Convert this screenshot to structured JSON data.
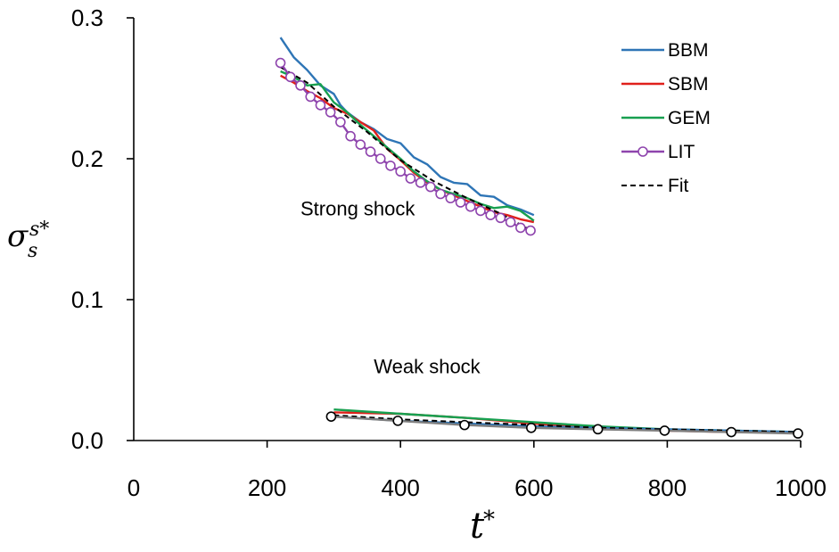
{
  "chart_data": {
    "type": "line",
    "title": "",
    "xlim": [
      0,
      1000
    ],
    "ylim": [
      0,
      0.3
    ],
    "x_ticks": [
      "0",
      "200",
      "400",
      "600",
      "800",
      "1000"
    ],
    "x_tick_values": [
      0,
      200,
      400,
      600,
      800,
      1000
    ],
    "y_ticks": [
      "0.0",
      "0.1",
      "0.2",
      "0.3"
    ],
    "y_tick_values": [
      0.0,
      0.1,
      0.2,
      0.3
    ],
    "grid": false,
    "legend_position": "top-right",
    "axis_labels": {
      "x": {
        "main": "t",
        "sup": "*"
      },
      "y": {
        "main": "σ",
        "sub": "s",
        "sup": "s*"
      }
    },
    "annotations": [
      {
        "text": "Strong shock",
        "x": 250,
        "y": 0.165
      },
      {
        "text": "Weak shock",
        "x": 360,
        "y": 0.053
      }
    ],
    "series": [
      {
        "name": "BBM",
        "color": "#2e75b6",
        "style": "solid",
        "marker": "none",
        "group": "strong",
        "points": [
          [
            220,
            0.286
          ],
          [
            240,
            0.272
          ],
          [
            260,
            0.263
          ],
          [
            280,
            0.252
          ],
          [
            300,
            0.246
          ],
          [
            310,
            0.238
          ],
          [
            320,
            0.233
          ],
          [
            340,
            0.226
          ],
          [
            360,
            0.221
          ],
          [
            380,
            0.214
          ],
          [
            400,
            0.211
          ],
          [
            420,
            0.201
          ],
          [
            440,
            0.196
          ],
          [
            460,
            0.187
          ],
          [
            480,
            0.183
          ],
          [
            500,
            0.182
          ],
          [
            520,
            0.174
          ],
          [
            540,
            0.173
          ],
          [
            560,
            0.167
          ],
          [
            580,
            0.164
          ],
          [
            600,
            0.16
          ]
        ]
      },
      {
        "name": "SBM",
        "color": "#e0201b",
        "style": "solid",
        "marker": "none",
        "group": "strong",
        "points": [
          [
            220,
            0.259
          ],
          [
            240,
            0.254
          ],
          [
            260,
            0.248
          ],
          [
            280,
            0.243
          ],
          [
            300,
            0.236
          ],
          [
            320,
            0.232
          ],
          [
            340,
            0.226
          ],
          [
            360,
            0.22
          ],
          [
            380,
            0.207
          ],
          [
            400,
            0.199
          ],
          [
            420,
            0.19
          ],
          [
            440,
            0.183
          ],
          [
            460,
            0.178
          ],
          [
            480,
            0.174
          ],
          [
            500,
            0.17
          ],
          [
            520,
            0.166
          ],
          [
            540,
            0.162
          ],
          [
            560,
            0.16
          ],
          [
            580,
            0.157
          ],
          [
            600,
            0.155
          ]
        ]
      },
      {
        "name": "GEM",
        "color": "#18a050",
        "style": "solid",
        "marker": "none",
        "group": "strong",
        "points": [
          [
            220,
            0.262
          ],
          [
            240,
            0.258
          ],
          [
            260,
            0.252
          ],
          [
            280,
            0.253
          ],
          [
            300,
            0.24
          ],
          [
            320,
            0.233
          ],
          [
            340,
            0.224
          ],
          [
            360,
            0.216
          ],
          [
            380,
            0.208
          ],
          [
            400,
            0.2
          ],
          [
            420,
            0.191
          ],
          [
            440,
            0.184
          ],
          [
            460,
            0.178
          ],
          [
            480,
            0.175
          ],
          [
            500,
            0.172
          ],
          [
            520,
            0.168
          ],
          [
            540,
            0.165
          ],
          [
            560,
            0.166
          ],
          [
            580,
            0.163
          ],
          [
            600,
            0.156
          ]
        ]
      },
      {
        "name": "LIT",
        "color": "#8e44ad",
        "style": "solid",
        "marker": "circle",
        "group": "strong",
        "points": [
          [
            220,
            0.268
          ],
          [
            235,
            0.258
          ],
          [
            250,
            0.252
          ],
          [
            265,
            0.244
          ],
          [
            280,
            0.238
          ],
          [
            295,
            0.233
          ],
          [
            310,
            0.226
          ],
          [
            325,
            0.216
          ],
          [
            340,
            0.21
          ],
          [
            355,
            0.205
          ],
          [
            370,
            0.2
          ],
          [
            385,
            0.195
          ],
          [
            400,
            0.191
          ],
          [
            415,
            0.186
          ],
          [
            430,
            0.183
          ],
          [
            445,
            0.18
          ],
          [
            460,
            0.175
          ],
          [
            475,
            0.172
          ],
          [
            490,
            0.169
          ],
          [
            505,
            0.166
          ],
          [
            520,
            0.163
          ],
          [
            535,
            0.16
          ],
          [
            550,
            0.158
          ],
          [
            565,
            0.155
          ],
          [
            580,
            0.151
          ],
          [
            595,
            0.149
          ]
        ]
      },
      {
        "name": "Fit",
        "color": "#000000",
        "style": "dashed",
        "marker": "none",
        "group": "strong",
        "points": [
          [
            220,
            0.265
          ],
          [
            260,
            0.254
          ],
          [
            300,
            0.237
          ],
          [
            350,
            0.219
          ],
          [
            400,
            0.199
          ],
          [
            450,
            0.184
          ],
          [
            500,
            0.172
          ],
          [
            550,
            0.161
          ],
          [
            600,
            0.148
          ]
        ]
      },
      {
        "name": "",
        "color": "#e0201b",
        "style": "solid",
        "marker": "none",
        "group": "weak",
        "points": [
          [
            300,
            0.02
          ],
          [
            400,
            0.019
          ],
          [
            500,
            0.016
          ],
          [
            600,
            0.012
          ],
          [
            700,
            0.009
          ],
          [
            800,
            0.007
          ],
          [
            900,
            0.006
          ],
          [
            1000,
            0.006
          ]
        ]
      },
      {
        "name": "",
        "color": "#18a050",
        "style": "solid",
        "marker": "none",
        "group": "weak",
        "points": [
          [
            300,
            0.022
          ],
          [
            400,
            0.019
          ],
          [
            500,
            0.016
          ],
          [
            600,
            0.013
          ],
          [
            700,
            0.01
          ],
          [
            800,
            0.008
          ],
          [
            900,
            0.007
          ],
          [
            1000,
            0.006
          ]
        ]
      },
      {
        "name": "",
        "color": "#2e75b6",
        "style": "solid",
        "marker": "none",
        "group": "weak",
        "points": [
          [
            300,
            0.017
          ],
          [
            400,
            0.014
          ],
          [
            500,
            0.012
          ],
          [
            600,
            0.01
          ],
          [
            700,
            0.009
          ],
          [
            800,
            0.008
          ],
          [
            900,
            0.007
          ],
          [
            1000,
            0.006
          ]
        ]
      },
      {
        "name": "",
        "color": "#7f7f7f",
        "style": "solid",
        "marker": "circle",
        "group": "weak",
        "points": [
          [
            296,
            0.017
          ],
          [
            396,
            0.014
          ],
          [
            496,
            0.011
          ],
          [
            596,
            0.009
          ],
          [
            696,
            0.008
          ],
          [
            796,
            0.007
          ],
          [
            896,
            0.006
          ],
          [
            996,
            0.005
          ]
        ]
      },
      {
        "name": "",
        "color": "#000000",
        "style": "dashed",
        "marker": "none",
        "group": "weak",
        "points": [
          [
            300,
            0.018
          ],
          [
            400,
            0.015
          ],
          [
            500,
            0.013
          ],
          [
            600,
            0.011
          ],
          [
            700,
            0.009
          ],
          [
            800,
            0.008
          ],
          [
            900,
            0.007
          ],
          [
            1000,
            0.006
          ]
        ]
      }
    ],
    "legend": [
      {
        "label": "BBM",
        "color": "#2e75b6",
        "style": "solid",
        "marker": "none"
      },
      {
        "label": "SBM",
        "color": "#e0201b",
        "style": "solid",
        "marker": "none"
      },
      {
        "label": "GEM",
        "color": "#18a050",
        "style": "solid",
        "marker": "none"
      },
      {
        "label": "LIT",
        "color": "#8e44ad",
        "style": "solid",
        "marker": "circle"
      },
      {
        "label": "Fit",
        "color": "#000000",
        "style": "dashed",
        "marker": "none"
      }
    ]
  }
}
